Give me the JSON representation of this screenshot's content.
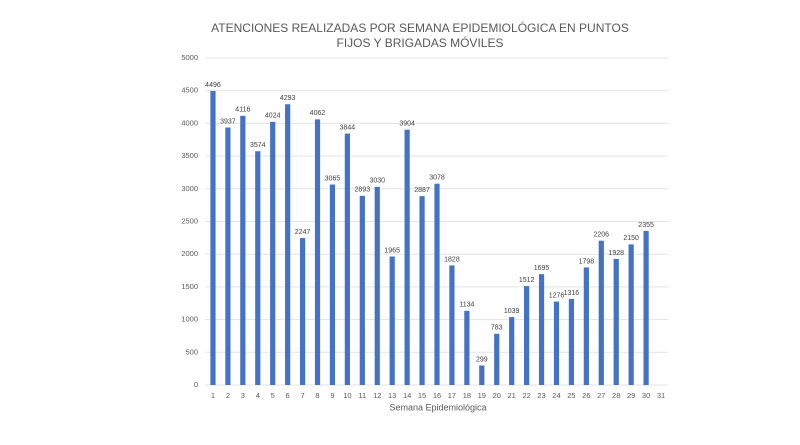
{
  "chart_data": {
    "type": "bar",
    "title": "ATENCIONES REALIZADAS POR SEMANA EPIDEMIOLÓGICA EN PUNTOS FIJOS Y BRIGADAS MÓVILES",
    "x_label": "Semana Epidemiológica",
    "categories": [
      "1",
      "2",
      "3",
      "4",
      "5",
      "6",
      "7",
      "8",
      "9",
      "10",
      "11",
      "12",
      "13",
      "14",
      "15",
      "16",
      "17",
      "18",
      "19",
      "20",
      "21",
      "22",
      "23",
      "24",
      "25",
      "26",
      "27",
      "28",
      "29",
      "30",
      "31"
    ],
    "values": [
      4496,
      3937,
      4116,
      3574,
      4024,
      4293,
      2247,
      4062,
      3065,
      3844,
      2893,
      3030,
      1965,
      3904,
      2887,
      3078,
      1828,
      1134,
      299,
      783,
      1039,
      1512,
      1695,
      1276,
      1316,
      1798,
      2206,
      1928,
      2150,
      2355,
      null
    ],
    "color": "#4472c4",
    "ylim": [
      0,
      5000
    ],
    "yticks": [
      0,
      500,
      1000,
      1500,
      2000,
      2500,
      3000,
      3500,
      4000,
      4500,
      5000
    ],
    "grid": true
  }
}
